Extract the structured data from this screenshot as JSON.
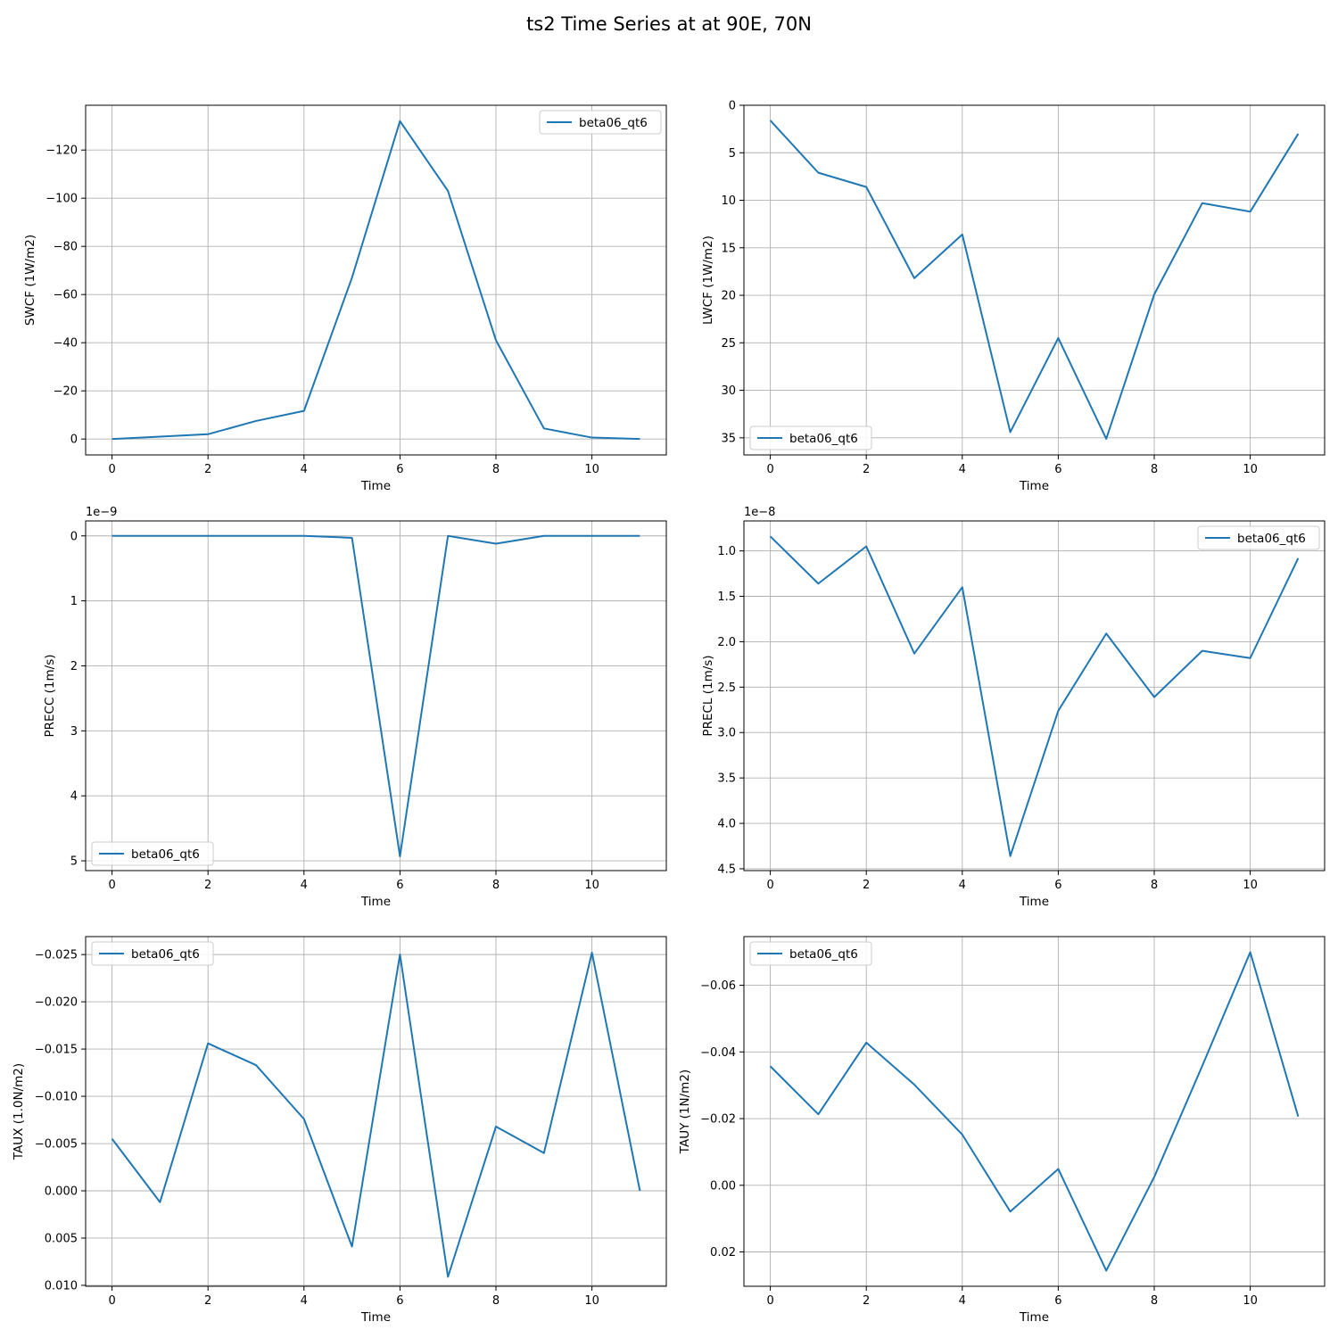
{
  "figure": {
    "title": "ts2 Time Series at at 90E, 70N"
  },
  "colors": {
    "series": "#1f77b4",
    "grid": "#b0b0b0",
    "axes": "#000000"
  },
  "chart_data": [
    {
      "type": "line",
      "xlabel": "Time",
      "ylabel": "SWCF (1W/m2)",
      "x": [
        0,
        1,
        2,
        3,
        4,
        5,
        6,
        7,
        8,
        9,
        10,
        11
      ],
      "series": [
        {
          "name": "beta06_qt6",
          "values": [
            0,
            -1,
            -2,
            -7.5,
            -11.7,
            -67,
            -132,
            -103,
            -41,
            -4.4,
            -0.6,
            0
          ]
        }
      ],
      "xlim": [
        -0.55,
        11.55
      ],
      "ylim": [
        6.6,
        -138.6
      ],
      "inverted_y": true,
      "xticks": [
        0,
        2,
        4,
        6,
        8,
        10
      ],
      "yticks": [
        -120,
        -100,
        -80,
        -60,
        -40,
        -20,
        0
      ],
      "ytick_labels": [
        "−120",
        "−100",
        "−80",
        "−60",
        "−40",
        "−20",
        "0"
      ],
      "offset_text": "",
      "legend": "upper-right",
      "grid": true
    },
    {
      "type": "line",
      "xlabel": "Time",
      "ylabel": "LWCF (1W/m2)",
      "x": [
        0,
        1,
        2,
        3,
        4,
        5,
        6,
        7,
        8,
        9,
        10,
        11
      ],
      "series": [
        {
          "name": "beta06_qt6",
          "values": [
            1.6,
            7.1,
            8.6,
            18.2,
            13.6,
            34.4,
            24.5,
            35.1,
            19.9,
            10.3,
            11.2,
            3.0
          ]
        }
      ],
      "xlim": [
        -0.55,
        11.55
      ],
      "ylim": [
        36.8,
        0
      ],
      "inverted_y": true,
      "xticks": [
        0,
        2,
        4,
        6,
        8,
        10
      ],
      "yticks": [
        0,
        5,
        10,
        15,
        20,
        25,
        30,
        35
      ],
      "ytick_labels": [
        "0",
        "5",
        "10",
        "15",
        "20",
        "25",
        "30",
        "35"
      ],
      "offset_text": "",
      "legend": "lower-left",
      "grid": true
    },
    {
      "type": "line",
      "xlabel": "Time",
      "ylabel": "PRECC (1m/s)",
      "x": [
        0,
        1,
        2,
        3,
        4,
        5,
        6,
        7,
        8,
        9,
        10,
        11
      ],
      "series": [
        {
          "name": "beta06_qt6",
          "values": [
            0,
            0,
            0,
            0,
            0,
            0.03,
            4.93,
            0,
            0.12,
            0,
            0,
            0
          ]
        }
      ],
      "xlim": [
        -0.55,
        11.55
      ],
      "ylim": [
        5.15,
        -0.23
      ],
      "inverted_y": true,
      "xticks": [
        0,
        2,
        4,
        6,
        8,
        10
      ],
      "yticks": [
        0,
        1,
        2,
        3,
        4,
        5
      ],
      "ytick_labels": [
        "0",
        "1",
        "2",
        "3",
        "4",
        "5"
      ],
      "offset_text": "1e−9",
      "legend": "lower-left",
      "grid": true
    },
    {
      "type": "line",
      "xlabel": "Time",
      "ylabel": "PRECL (1m/s)",
      "x": [
        0,
        1,
        2,
        3,
        4,
        5,
        6,
        7,
        8,
        9,
        10,
        11
      ],
      "series": [
        {
          "name": "beta06_qt6",
          "values": [
            0.84,
            1.36,
            0.95,
            2.13,
            1.4,
            4.36,
            2.76,
            1.91,
            2.61,
            2.1,
            2.18,
            1.08
          ]
        }
      ],
      "xlim": [
        -0.55,
        11.55
      ],
      "ylim": [
        4.52,
        0.67
      ],
      "inverted_y": true,
      "xticks": [
        0,
        2,
        4,
        6,
        8,
        10
      ],
      "yticks": [
        1.0,
        1.5,
        2.0,
        2.5,
        3.0,
        3.5,
        4.0,
        4.5
      ],
      "ytick_labels": [
        "1.0",
        "1.5",
        "2.0",
        "2.5",
        "3.0",
        "3.5",
        "4.0",
        "4.5"
      ],
      "offset_text": "1e−8",
      "legend": "upper-right",
      "grid": true
    },
    {
      "type": "line",
      "xlabel": "Time",
      "ylabel": "TAUX (1.0N/m2)",
      "x": [
        0,
        1,
        2,
        3,
        4,
        5,
        6,
        7,
        8,
        9,
        10,
        11
      ],
      "series": [
        {
          "name": "beta06_qt6",
          "values": [
            -0.0055,
            0.0012,
            -0.0156,
            -0.0133,
            -0.0076,
            0.0059,
            -0.025,
            0.0091,
            -0.0068,
            -0.004,
            -0.0252,
            0.0
          ]
        }
      ],
      "xlim": [
        -0.55,
        11.55
      ],
      "ylim": [
        0.0101,
        -0.0269
      ],
      "inverted_y": true,
      "xticks": [
        0,
        2,
        4,
        6,
        8,
        10
      ],
      "yticks": [
        -0.025,
        -0.02,
        -0.015,
        -0.01,
        -0.005,
        0.0,
        0.005,
        0.01
      ],
      "ytick_labels": [
        "−0.025",
        "−0.020",
        "−0.015",
        "−0.010",
        "−0.005",
        "0.000",
        "0.005",
        "0.010"
      ],
      "offset_text": "",
      "legend": "upper-left",
      "grid": true
    },
    {
      "type": "line",
      "xlabel": "Time",
      "ylabel": "TAUY (1N/m2)",
      "x": [
        0,
        1,
        2,
        3,
        4,
        5,
        6,
        7,
        8,
        9,
        10,
        11
      ],
      "series": [
        {
          "name": "beta06_qt6",
          "values": [
            -0.0357,
            -0.0213,
            -0.0428,
            -0.0302,
            -0.0152,
            0.0079,
            -0.0049,
            0.0256,
            -0.0025,
            -0.0358,
            -0.0699,
            -0.0206
          ]
        }
      ],
      "xlim": [
        -0.55,
        11.55
      ],
      "ylim": [
        0.0303,
        -0.0746
      ],
      "inverted_y": true,
      "xticks": [
        0,
        2,
        4,
        6,
        8,
        10
      ],
      "yticks": [
        -0.06,
        -0.04,
        -0.02,
        0.0,
        0.02
      ],
      "ytick_labels": [
        "−0.06",
        "−0.04",
        "−0.02",
        "0.00",
        "0.02"
      ],
      "offset_text": "",
      "legend": "upper-left",
      "grid": true
    }
  ]
}
